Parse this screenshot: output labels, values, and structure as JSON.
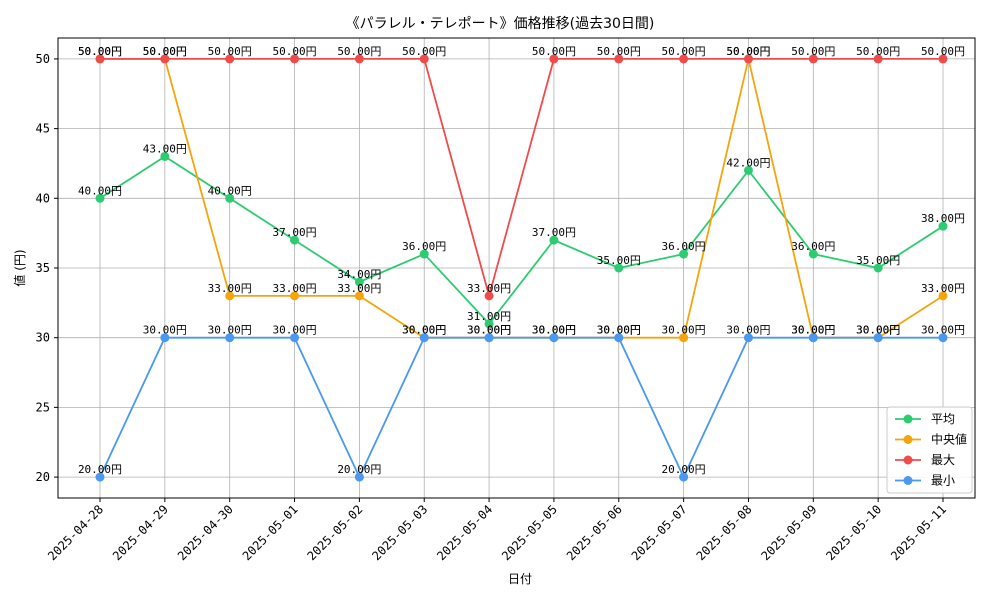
{
  "chart_data": {
    "type": "line",
    "title": "《パラレル・テレポート》価格推移(過去30日間)",
    "xlabel": "日付",
    "ylabel": "値 (円)",
    "ylim": [
      18.5,
      51.5
    ],
    "yticks": [
      20,
      25,
      30,
      35,
      40,
      45,
      50
    ],
    "grid": true,
    "legend_position": "lower-right",
    "label_suffix": "円",
    "categories": [
      "2025-04-28",
      "2025-04-29",
      "2025-04-30",
      "2025-05-01",
      "2025-05-02",
      "2025-05-03",
      "2025-05-04",
      "2025-05-05",
      "2025-05-06",
      "2025-05-07",
      "2025-05-08",
      "2025-05-09",
      "2025-05-10",
      "2025-05-11"
    ],
    "series": [
      {
        "name": "平均",
        "color": "#2ecc71",
        "values": [
          40,
          43,
          40,
          37,
          34,
          36,
          31,
          37,
          35,
          36,
          42,
          36,
          35,
          38
        ]
      },
      {
        "name": "中央値",
        "color": "#f5a50b",
        "values": [
          50,
          50,
          33,
          33,
          33,
          30,
          30,
          30,
          30,
          30,
          50,
          30,
          30,
          33
        ]
      },
      {
        "name": "最大",
        "color": "#f04b4b",
        "values": [
          50,
          50,
          50,
          50,
          50,
          50,
          33,
          50,
          50,
          50,
          50,
          50,
          50,
          50
        ]
      },
      {
        "name": "最小",
        "color": "#4a98f0",
        "values": [
          20,
          30,
          30,
          30,
          20,
          30,
          30,
          30,
          30,
          20,
          30,
          30,
          30,
          30
        ]
      }
    ]
  }
}
